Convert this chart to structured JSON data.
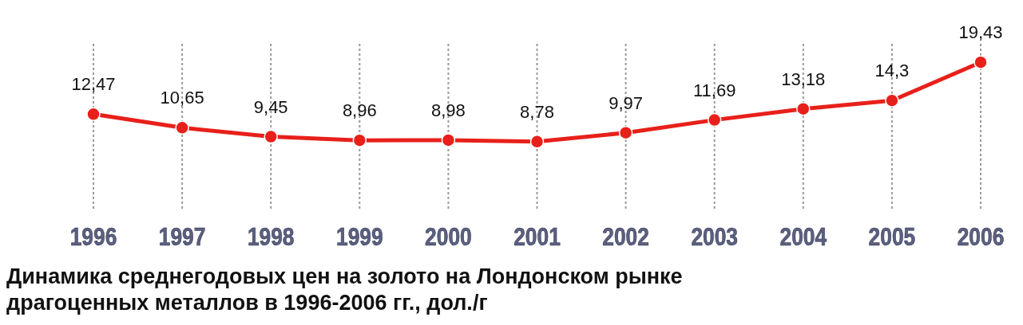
{
  "chart_data": {
    "type": "line",
    "title": "Динамика среднегодовых цен на золото на Лондонском рынке драгоценных металлов в 1996-2006 гг., дол./г",
    "categories": [
      "1996",
      "1997",
      "1998",
      "1999",
      "2000",
      "2001",
      "2002",
      "2003",
      "2004",
      "2005",
      "2006"
    ],
    "series": [
      {
        "color": "#e8201a",
        "values": [
          12.47,
          10.65,
          9.45,
          8.96,
          8.98,
          8.78,
          9.97,
          11.69,
          13.18,
          14.3,
          19.43
        ],
        "value_labels": [
          "12,47",
          "10,65",
          "9,45",
          "8,96",
          "8,98",
          "8,78",
          "9,97",
          "11,69",
          "13,18",
          "14,3",
          "19,43"
        ]
      }
    ],
    "grid": "x",
    "marker": "circle",
    "line_style": "solid"
  }
}
